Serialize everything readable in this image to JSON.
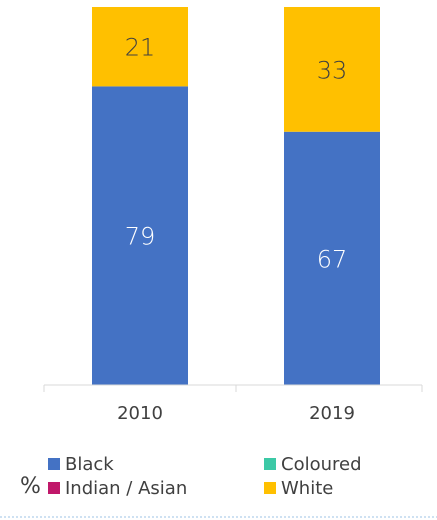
{
  "chart_data": {
    "type": "bar",
    "stacked": true,
    "categories": [
      "2010",
      "2019"
    ],
    "series": [
      {
        "name": "Black",
        "values": [
          79,
          67
        ],
        "color": "#4472C4",
        "label_color": "#ffffff"
      },
      {
        "name": "Coloured",
        "values": [
          0,
          0
        ],
        "color": "#3CC9A6",
        "label_color": "#404040"
      },
      {
        "name": "Indian / Asian",
        "values": [
          0,
          0
        ],
        "color": "#C0186A",
        "label_color": "#ffffff"
      },
      {
        "name": "White",
        "values": [
          21,
          33
        ],
        "color": "#FFC000",
        "label_color": "#404040"
      }
    ],
    "ylim": [
      0,
      100
    ],
    "unit_label": "%",
    "grid": false,
    "legend_position": "bottom"
  }
}
